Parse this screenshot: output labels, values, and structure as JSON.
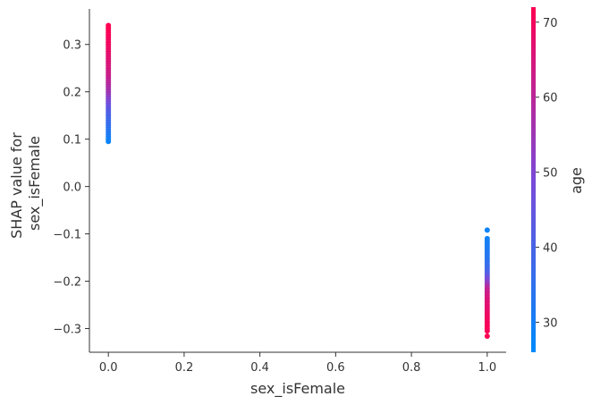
{
  "chart_data": {
    "type": "scatter",
    "title": "",
    "xlabel": "sex_isFemale",
    "ylabel_lines": [
      "SHAP value for",
      "sex_isFemale"
    ],
    "xlim": [
      -0.05,
      1.05
    ],
    "ylim": [
      -0.35,
      0.375
    ],
    "x_ticks": [
      0.0,
      0.2,
      0.4,
      0.6,
      0.8,
      1.0
    ],
    "x_tick_labels": [
      "0.0",
      "0.2",
      "0.4",
      "0.6",
      "0.8",
      "1.0"
    ],
    "y_ticks": [
      -0.3,
      -0.2,
      -0.1,
      0.0,
      0.1,
      0.2,
      0.3
    ],
    "y_tick_labels": [
      "−0.3",
      "−0.2",
      "−0.1",
      "0.0",
      "0.1",
      "0.2",
      "0.3"
    ],
    "grid": false,
    "colorbar": {
      "label": "age",
      "range": [
        26,
        72
      ],
      "ticks": [
        30,
        40,
        50,
        60,
        70
      ],
      "tick_labels": [
        "30",
        "40",
        "50",
        "60",
        "70"
      ],
      "colors": [
        "#008afb",
        "#7a4ad8",
        "#ff0052"
      ]
    },
    "series": [
      {
        "x": 0,
        "points": [
          {
            "y": 0.095,
            "age": 28
          },
          {
            "y": 0.1,
            "age": 29
          },
          {
            "y": 0.105,
            "age": 30
          },
          {
            "y": 0.11,
            "age": 31
          },
          {
            "y": 0.115,
            "age": 32
          },
          {
            "y": 0.12,
            "age": 33
          },
          {
            "y": 0.125,
            "age": 34
          },
          {
            "y": 0.13,
            "age": 35
          },
          {
            "y": 0.135,
            "age": 36
          },
          {
            "y": 0.14,
            "age": 37
          },
          {
            "y": 0.145,
            "age": 38
          },
          {
            "y": 0.15,
            "age": 39
          },
          {
            "y": 0.155,
            "age": 40
          },
          {
            "y": 0.16,
            "age": 41
          },
          {
            "y": 0.165,
            "age": 43
          },
          {
            "y": 0.17,
            "age": 44
          },
          {
            "y": 0.175,
            "age": 46
          },
          {
            "y": 0.18,
            "age": 48
          },
          {
            "y": 0.185,
            "age": 50
          },
          {
            "y": 0.19,
            "age": 51
          },
          {
            "y": 0.195,
            "age": 53
          },
          {
            "y": 0.2,
            "age": 55
          },
          {
            "y": 0.205,
            "age": 56
          },
          {
            "y": 0.21,
            "age": 57
          },
          {
            "y": 0.215,
            "age": 58
          },
          {
            "y": 0.22,
            "age": 59
          },
          {
            "y": 0.225,
            "age": 60
          },
          {
            "y": 0.23,
            "age": 61
          },
          {
            "y": 0.235,
            "age": 62
          },
          {
            "y": 0.24,
            "age": 63
          },
          {
            "y": 0.245,
            "age": 63
          },
          {
            "y": 0.25,
            "age": 64
          },
          {
            "y": 0.255,
            "age": 65
          },
          {
            "y": 0.26,
            "age": 65
          },
          {
            "y": 0.265,
            "age": 66
          },
          {
            "y": 0.27,
            "age": 66
          },
          {
            "y": 0.275,
            "age": 67
          },
          {
            "y": 0.28,
            "age": 67
          },
          {
            "y": 0.285,
            "age": 68
          },
          {
            "y": 0.29,
            "age": 68
          },
          {
            "y": 0.295,
            "age": 69
          },
          {
            "y": 0.3,
            "age": 69
          },
          {
            "y": 0.305,
            "age": 70
          },
          {
            "y": 0.31,
            "age": 70
          },
          {
            "y": 0.315,
            "age": 70
          },
          {
            "y": 0.32,
            "age": 71
          },
          {
            "y": 0.325,
            "age": 71
          },
          {
            "y": 0.33,
            "age": 71
          },
          {
            "y": 0.335,
            "age": 72
          },
          {
            "y": 0.34,
            "age": 72
          }
        ]
      },
      {
        "x": 1,
        "points": [
          {
            "y": -0.092,
            "age": 28
          },
          {
            "y": -0.11,
            "age": 29
          },
          {
            "y": -0.115,
            "age": 30
          },
          {
            "y": -0.12,
            "age": 30
          },
          {
            "y": -0.125,
            "age": 31
          },
          {
            "y": -0.13,
            "age": 31
          },
          {
            "y": -0.135,
            "age": 32
          },
          {
            "y": -0.14,
            "age": 32
          },
          {
            "y": -0.145,
            "age": 33
          },
          {
            "y": -0.15,
            "age": 33
          },
          {
            "y": -0.155,
            "age": 34
          },
          {
            "y": -0.16,
            "age": 35
          },
          {
            "y": -0.165,
            "age": 36
          },
          {
            "y": -0.17,
            "age": 37
          },
          {
            "y": -0.175,
            "age": 38
          },
          {
            "y": -0.18,
            "age": 40
          },
          {
            "y": -0.185,
            "age": 42
          },
          {
            "y": -0.19,
            "age": 45
          },
          {
            "y": -0.195,
            "age": 48
          },
          {
            "y": -0.2,
            "age": 51
          },
          {
            "y": -0.205,
            "age": 54
          },
          {
            "y": -0.21,
            "age": 57
          },
          {
            "y": -0.215,
            "age": 60
          },
          {
            "y": -0.22,
            "age": 62
          },
          {
            "y": -0.225,
            "age": 63
          },
          {
            "y": -0.23,
            "age": 64
          },
          {
            "y": -0.235,
            "age": 65
          },
          {
            "y": -0.24,
            "age": 66
          },
          {
            "y": -0.245,
            "age": 66
          },
          {
            "y": -0.25,
            "age": 67
          },
          {
            "y": -0.255,
            "age": 67
          },
          {
            "y": -0.26,
            "age": 68
          },
          {
            "y": -0.265,
            "age": 68
          },
          {
            "y": -0.27,
            "age": 69
          },
          {
            "y": -0.275,
            "age": 69
          },
          {
            "y": -0.28,
            "age": 70
          },
          {
            "y": -0.285,
            "age": 70
          },
          {
            "y": -0.29,
            "age": 70
          },
          {
            "y": -0.295,
            "age": 71
          },
          {
            "y": -0.3,
            "age": 71
          },
          {
            "y": -0.305,
            "age": 71
          },
          {
            "y": -0.316,
            "age": 72
          }
        ]
      }
    ]
  }
}
